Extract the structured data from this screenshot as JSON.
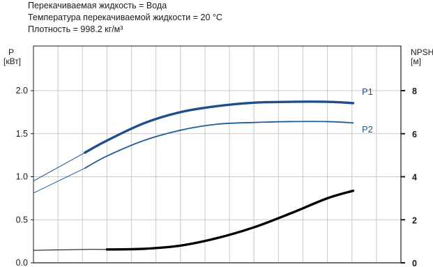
{
  "info": {
    "line1": "Перекачиваемая жидкость = Вода",
    "line2": "Температура перекачиваемой жидкости = 20 °C",
    "line3": "Плотность = 998.2 кг/м³"
  },
  "chart_data": {
    "type": "line",
    "left_axis": {
      "label_line1": "P",
      "label_line2": "[кВт]",
      "ylim": [
        0,
        2.0
      ],
      "ticks": [
        "0.0",
        "0.5",
        "1.0",
        "1.5",
        "2.0"
      ]
    },
    "right_axis": {
      "label_line1": "NPSH",
      "label_line2": "[м]",
      "ylim": [
        0,
        8
      ],
      "ticks": [
        "0",
        "2",
        "4",
        "6",
        "8"
      ]
    },
    "x_gridlines": 15,
    "grid": true,
    "series": [
      {
        "name": "P1",
        "axis": "left",
        "color": "#1f4e8c",
        "x": [
          0,
          14,
          20,
          30,
          40,
          50,
          60,
          70,
          80,
          87
        ],
        "y": [
          0.95,
          1.28,
          1.42,
          1.62,
          1.75,
          1.82,
          1.86,
          1.87,
          1.87,
          1.855
        ],
        "bold_from_x": 14
      },
      {
        "name": "P2",
        "axis": "left",
        "color": "#1f5c99",
        "x": [
          0,
          14,
          20,
          30,
          40,
          50,
          60,
          70,
          80,
          87
        ],
        "y": [
          0.81,
          1.1,
          1.24,
          1.42,
          1.54,
          1.61,
          1.63,
          1.64,
          1.64,
          1.625
        ],
        "bold_from_x": 14
      },
      {
        "name": "",
        "axis": "right",
        "color": "#000000",
        "x": [
          0,
          14,
          20,
          30,
          40,
          50,
          60,
          70,
          80,
          87
        ],
        "y": [
          0.58,
          0.62,
          0.62,
          0.65,
          0.8,
          1.15,
          1.65,
          2.3,
          3.0,
          3.35
        ],
        "bold_from_x": 20
      }
    ]
  }
}
